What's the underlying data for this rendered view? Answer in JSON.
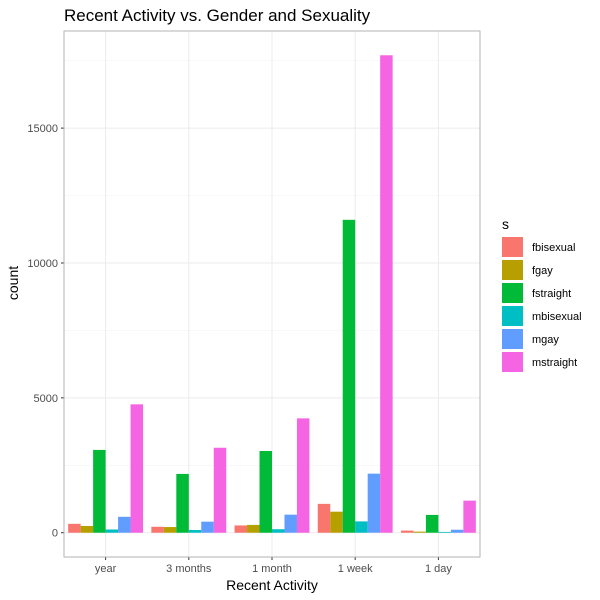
{
  "chart_data": {
    "type": "bar",
    "title": "Recent Activity vs. Gender and Sexuality",
    "xlabel": "Recent Activity",
    "ylabel": "count",
    "categories": [
      "year",
      "3 months",
      "1 month",
      "1 week",
      "1 day"
    ],
    "ylim": [
      -900,
      18600
    ],
    "yticks": [
      0,
      5000,
      10000,
      15000
    ],
    "grid": true,
    "legend": {
      "title": "s",
      "position": "right"
    },
    "series": [
      {
        "name": "fbisexual",
        "color": "#F8766D",
        "values": [
          330,
          220,
          270,
          1070,
          80
        ]
      },
      {
        "name": "fgay",
        "color": "#B79F00",
        "values": [
          250,
          210,
          290,
          780,
          40
        ]
      },
      {
        "name": "fstraight",
        "color": "#00BA38",
        "values": [
          3070,
          2180,
          3030,
          11600,
          660
        ]
      },
      {
        "name": "mbisexual",
        "color": "#00BFC4",
        "values": [
          120,
          100,
          130,
          420,
          30
        ]
      },
      {
        "name": "mgay",
        "color": "#619CFF",
        "values": [
          590,
          410,
          670,
          2190,
          110
        ]
      },
      {
        "name": "mstraight",
        "color": "#F564E3",
        "values": [
          4760,
          3150,
          4240,
          17700,
          1190
        ]
      }
    ]
  }
}
